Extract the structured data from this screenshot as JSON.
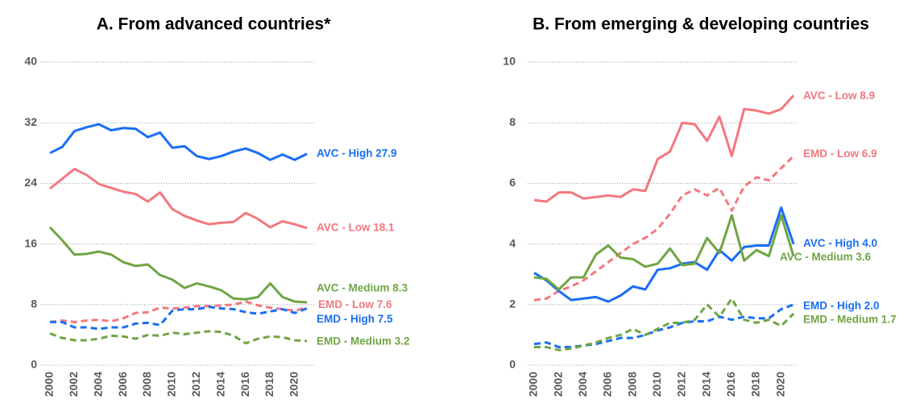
{
  "chart_data": [
    {
      "type": "line",
      "title": "A. From advanced countries*",
      "x": [
        2000,
        2001,
        2002,
        2003,
        2004,
        2005,
        2006,
        2007,
        2008,
        2009,
        2010,
        2011,
        2012,
        2013,
        2014,
        2015,
        2016,
        2017,
        2018,
        2019,
        2020,
        2021
      ],
      "xticks": [
        2000,
        2002,
        2004,
        2006,
        2008,
        2010,
        2012,
        2014,
        2016,
        2018,
        2020
      ],
      "xlim": [
        2000,
        2021
      ],
      "ylim": [
        0,
        40
      ],
      "yticks": [
        0,
        8,
        16,
        24,
        32,
        40
      ],
      "grid": true,
      "series": [
        {
          "name": "AVC - High 27.9",
          "color": "#1a6ef5",
          "dashed": false,
          "values": [
            28.0,
            28.8,
            30.9,
            31.4,
            31.8,
            31.0,
            31.3,
            31.2,
            30.1,
            30.7,
            28.7,
            28.9,
            27.6,
            27.2,
            27.6,
            28.2,
            28.6,
            28.0,
            27.1,
            27.8,
            27.1,
            27.9
          ]
        },
        {
          "name": "AVC - Low 18.1",
          "color": "#f4777f",
          "dashed": false,
          "values": [
            23.3,
            24.6,
            25.9,
            25.1,
            23.9,
            23.4,
            22.9,
            22.6,
            21.6,
            22.8,
            20.6,
            19.7,
            19.1,
            18.6,
            18.8,
            18.9,
            20.1,
            19.3,
            18.2,
            19.0,
            18.6,
            18.1
          ]
        },
        {
          "name": "AVC - Medium 8.3",
          "color": "#6fa544",
          "dashed": false,
          "values": [
            18.2,
            16.5,
            14.6,
            14.7,
            15.0,
            14.6,
            13.6,
            13.1,
            13.3,
            11.9,
            11.3,
            10.2,
            10.8,
            10.4,
            9.9,
            8.8,
            8.7,
            9.0,
            10.8,
            9.0,
            8.4,
            8.3
          ]
        },
        {
          "name": "EMD - Low 7.6",
          "color": "#f4777f",
          "dashed": true,
          "values": [
            5.7,
            5.9,
            5.7,
            5.9,
            6.0,
            5.8,
            6.2,
            6.9,
            7.0,
            7.6,
            7.5,
            7.6,
            7.8,
            7.8,
            7.9,
            8.0,
            8.4,
            7.9,
            7.6,
            7.4,
            7.2,
            7.6
          ]
        },
        {
          "name": "EMD - High 7.5",
          "color": "#1a6ef5",
          "dashed": true,
          "values": [
            5.7,
            5.7,
            5.0,
            5.0,
            4.8,
            5.0,
            5.0,
            5.5,
            5.6,
            5.3,
            7.2,
            7.4,
            7.4,
            7.7,
            7.5,
            7.4,
            7.0,
            6.8,
            7.1,
            7.4,
            6.9,
            7.5
          ]
        },
        {
          "name": "EMD - Medium 3.2",
          "color": "#6fa544",
          "dashed": true,
          "values": [
            4.2,
            3.6,
            3.3,
            3.3,
            3.5,
            3.9,
            3.8,
            3.5,
            4.0,
            3.9,
            4.3,
            4.1,
            4.3,
            4.5,
            4.4,
            3.9,
            2.9,
            3.5,
            3.8,
            3.7,
            3.3,
            3.2
          ]
        }
      ]
    },
    {
      "type": "line",
      "title": "B. From emerging & developing countries",
      "x": [
        2000,
        2001,
        2002,
        2003,
        2004,
        2005,
        2006,
        2007,
        2008,
        2009,
        2010,
        2011,
        2012,
        2013,
        2014,
        2015,
        2016,
        2017,
        2018,
        2019,
        2020,
        2021
      ],
      "xticks": [
        2000,
        2002,
        2004,
        2006,
        2008,
        2010,
        2012,
        2014,
        2016,
        2018,
        2020
      ],
      "xlim": [
        2000,
        2021
      ],
      "ylim": [
        0,
        10
      ],
      "yticks": [
        0,
        2,
        4,
        6,
        8,
        10
      ],
      "grid": true,
      "series": [
        {
          "name": "AVC - Low 8.9",
          "color": "#f4777f",
          "dashed": false,
          "values": [
            5.45,
            5.4,
            5.7,
            5.7,
            5.5,
            5.55,
            5.6,
            5.55,
            5.8,
            5.75,
            6.8,
            7.05,
            8.0,
            7.95,
            7.4,
            8.2,
            6.9,
            8.45,
            8.4,
            8.3,
            8.45,
            8.9
          ]
        },
        {
          "name": "EMD - Low 6.9",
          "color": "#f4777f",
          "dashed": true,
          "values": [
            2.15,
            2.2,
            2.45,
            2.6,
            2.8,
            3.1,
            3.4,
            3.7,
            4.0,
            4.2,
            4.5,
            5.0,
            5.6,
            5.8,
            5.6,
            5.85,
            5.1,
            5.9,
            6.2,
            6.1,
            6.5,
            6.9
          ]
        },
        {
          "name": "AVC - High 4.0",
          "color": "#1a6ef5",
          "dashed": false,
          "values": [
            3.05,
            2.8,
            2.45,
            2.15,
            2.2,
            2.25,
            2.1,
            2.3,
            2.6,
            2.5,
            3.15,
            3.2,
            3.35,
            3.4,
            3.15,
            3.8,
            3.45,
            3.9,
            3.95,
            3.95,
            5.2,
            4.0
          ]
        },
        {
          "name": "AVC - Medium 3.6",
          "color": "#6fa544",
          "dashed": false,
          "values": [
            2.9,
            2.85,
            2.5,
            2.9,
            2.9,
            3.65,
            3.95,
            3.55,
            3.5,
            3.25,
            3.35,
            3.85,
            3.3,
            3.35,
            4.2,
            3.7,
            4.95,
            3.45,
            3.8,
            3.6,
            4.95,
            3.6
          ]
        },
        {
          "name": "EMD - High 2.0",
          "color": "#1a6ef5",
          "dashed": true,
          "values": [
            0.7,
            0.75,
            0.6,
            0.6,
            0.65,
            0.7,
            0.8,
            0.9,
            0.9,
            1.0,
            1.15,
            1.25,
            1.4,
            1.45,
            1.45,
            1.6,
            1.5,
            1.6,
            1.55,
            1.55,
            1.85,
            2.0
          ]
        },
        {
          "name": "EMD - Medium 1.7",
          "color": "#6fa544",
          "dashed": true,
          "values": [
            0.6,
            0.6,
            0.5,
            0.55,
            0.65,
            0.75,
            0.9,
            1.0,
            1.2,
            1.0,
            1.2,
            1.4,
            1.4,
            1.5,
            2.0,
            1.6,
            2.2,
            1.5,
            1.4,
            1.5,
            1.3,
            1.7
          ]
        }
      ]
    }
  ]
}
